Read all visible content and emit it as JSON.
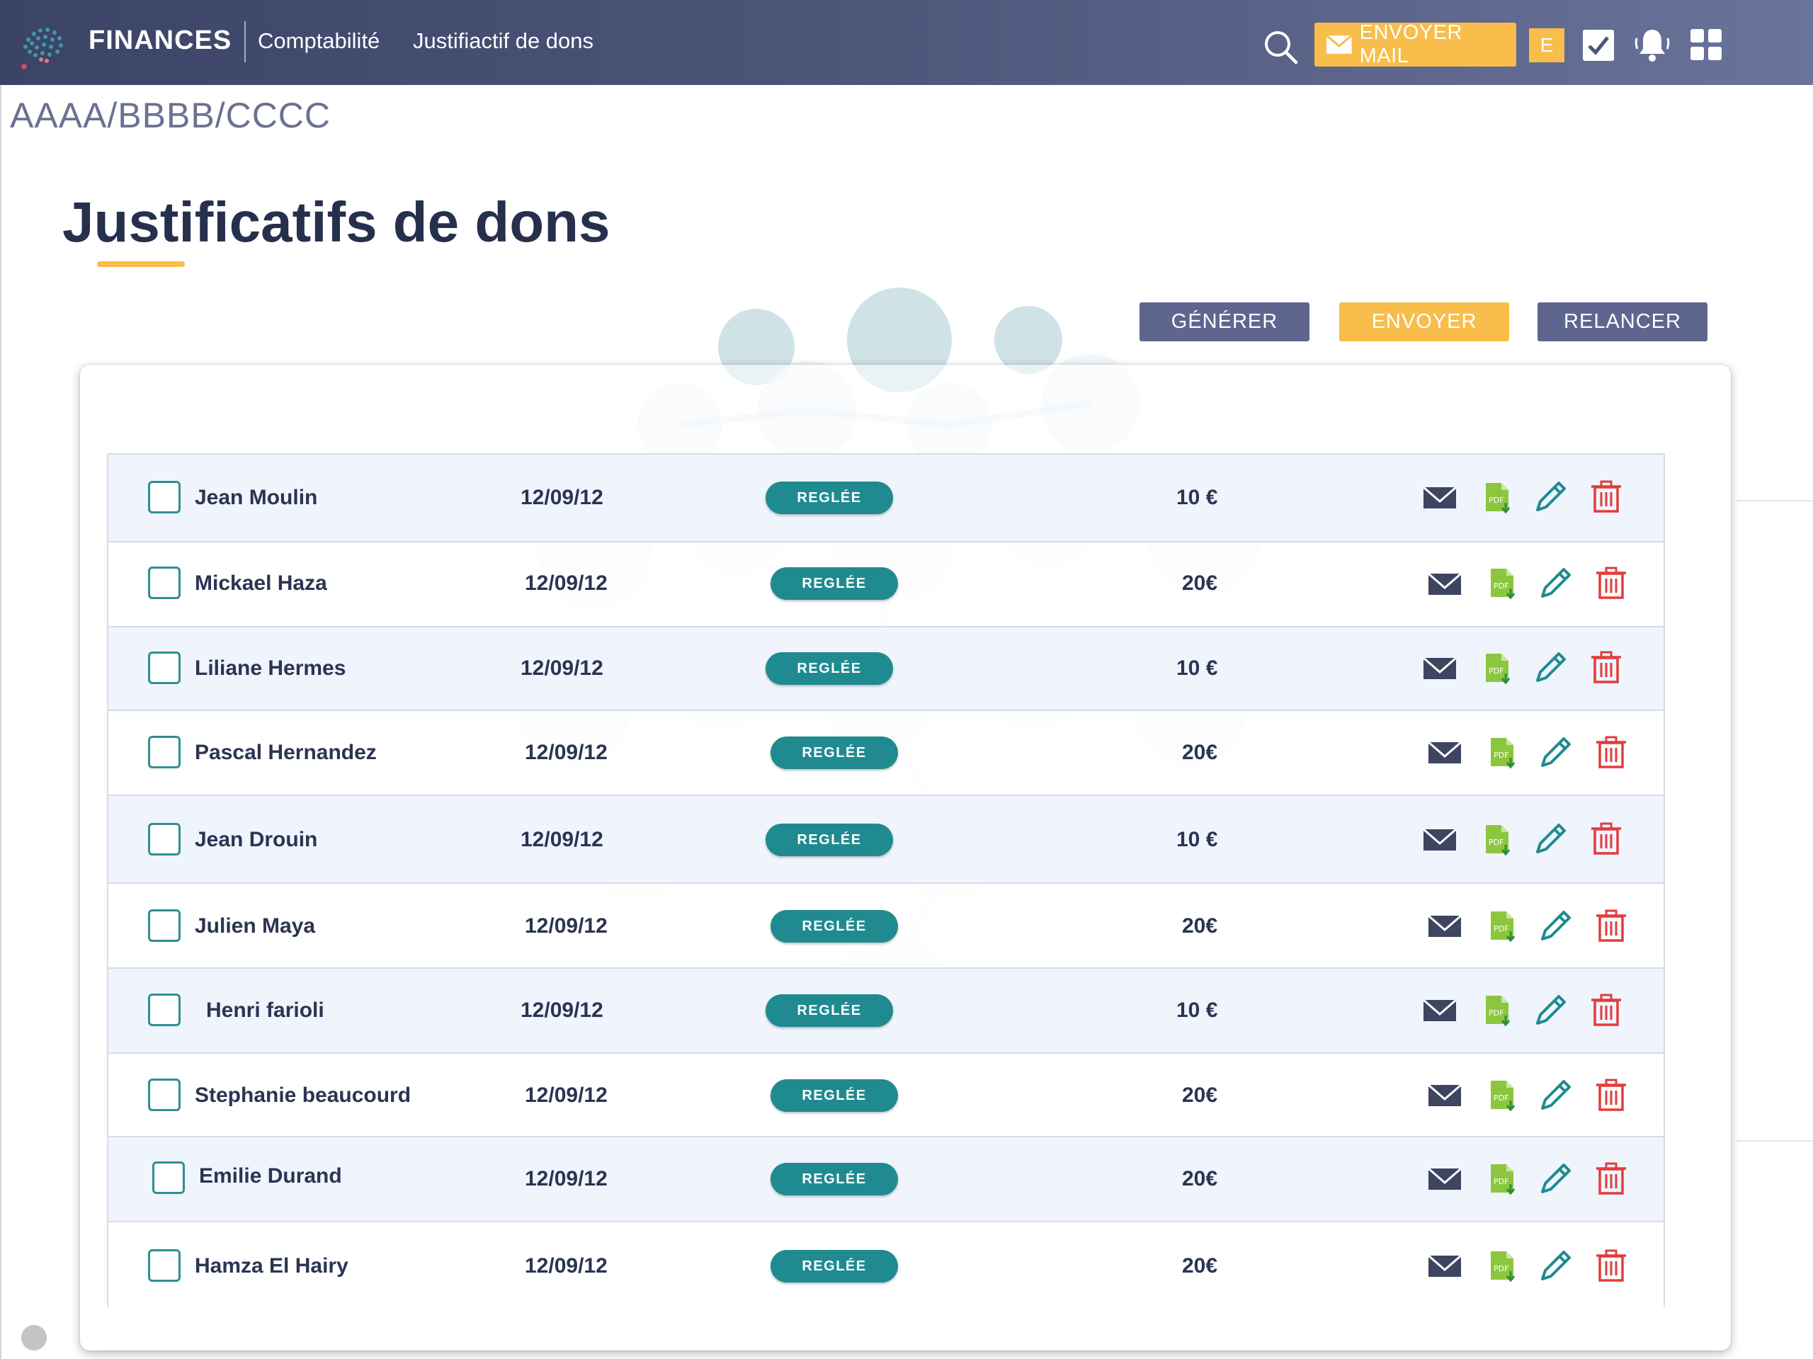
{
  "header": {
    "brand": "FINANCES",
    "nav": [
      "Comptabilité",
      "Justifiactif de dons"
    ],
    "mail_button": "ENVOYER  MAIL",
    "badge_letter": "E"
  },
  "breadcrumb": "AAAA/BBBB/CCCC",
  "page_title": "Justificatifs de dons",
  "actions": {
    "generate": "GÉNÉRER",
    "send": "ENVOYER",
    "remind": "RELANCER"
  },
  "colors": {
    "accent": "#f8bd4a",
    "primary_button": "#5e6690",
    "status_badge": "#1f8b90",
    "delete_icon": "#e23c3c",
    "pdf_icon": "#8cc63e",
    "edit_icon": "#1f8b90"
  },
  "icons": {
    "row_actions": [
      "mail-icon",
      "pdf-download-icon",
      "edit-pencil-icon",
      "trash-icon"
    ],
    "header": [
      "search-icon",
      "checkbox-icon",
      "bell-icon",
      "apps-grid-icon"
    ]
  },
  "rows": [
    {
      "name": "Jean Moulin",
      "date": "12/09/12",
      "status": "REGLÉE",
      "amount": "10 €"
    },
    {
      "name": "Mickael Haza",
      "date": "12/09/12",
      "status": "REGLÉE",
      "amount": "20€"
    },
    {
      "name": "Liliane Hermes",
      "date": "12/09/12",
      "status": "REGLÉE",
      "amount": "10 €"
    },
    {
      "name": "Pascal Hernandez",
      "date": "12/09/12",
      "status": "REGLÉE",
      "amount": "20€"
    },
    {
      "name": "Jean Drouin",
      "date": "12/09/12",
      "status": "REGLÉE",
      "amount": "10 €"
    },
    {
      "name": "Julien Maya",
      "date": "12/09/12",
      "status": "REGLÉE",
      "amount": "20€"
    },
    {
      "name": "Henri farioli",
      "date": "12/09/12",
      "status": "REGLÉE",
      "amount": "10 €"
    },
    {
      "name": "Stephanie beaucourd",
      "date": "12/09/12",
      "status": "REGLÉE",
      "amount": "20€"
    },
    {
      "name": "Emilie Durand",
      "date": "12/09/12",
      "status": "REGLÉE",
      "amount": "20€"
    },
    {
      "name": "Hamza El Hairy",
      "date": "12/09/12",
      "status": "REGLÉE",
      "amount": "20€"
    }
  ]
}
